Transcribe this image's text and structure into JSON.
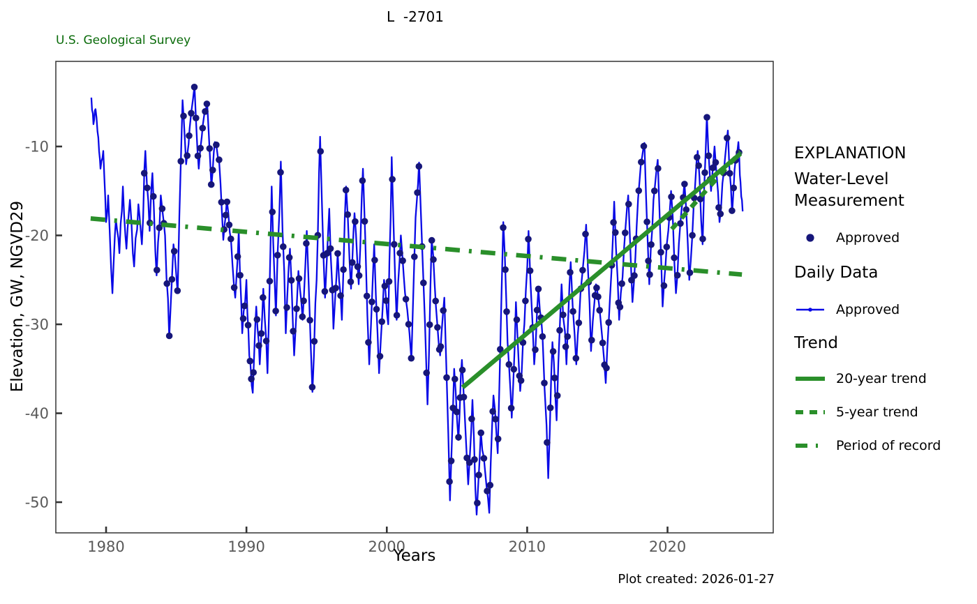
{
  "header": {
    "title": "L  -2701",
    "agency": "U.S. Geological Survey",
    "plot_created": "Plot created: 2026-01-27"
  },
  "axes": {
    "x_label": "Years",
    "y_label": "Elevation, GW, NGVD29"
  },
  "legend": {
    "title": "EXPLANATION",
    "sections": [
      {
        "header": "Water-Level Measurement",
        "items": [
          {
            "label": "Approved",
            "swatch": "measurement-dot"
          }
        ]
      },
      {
        "header": "Daily Data",
        "items": [
          {
            "label": "Approved",
            "swatch": "daily-line"
          }
        ]
      },
      {
        "header": "Trend",
        "items": [
          {
            "label": "20-year trend",
            "swatch": "solid-line"
          },
          {
            "label": "5-year trend",
            "swatch": "short-dash-line"
          },
          {
            "label": "Period of record",
            "swatch": "long-dash-line"
          }
        ]
      }
    ]
  },
  "colors": {
    "daily_line": "#0909e6",
    "measurement_dot": "#16167a",
    "trend_green": "#2a8f2a",
    "header_green": "#0a6b0a",
    "axis": "#333333",
    "tick_label": "#595959"
  },
  "chart_data": {
    "type": "line",
    "title": "L  -2701",
    "xlabel": "Years",
    "ylabel": "Elevation, GW, NGVD29",
    "grid": false,
    "x_range": [
      1976.42,
      2027.53
    ],
    "y_range": [
      -53.45,
      -0.43
    ],
    "x_ticks": [
      1980,
      1990,
      2000,
      2010,
      2020
    ],
    "y_ticks": [
      -10,
      -20,
      -30,
      -40,
      -50
    ],
    "series": [
      {
        "name": "Daily Data — Approved",
        "type": "line",
        "color_key": "daily_line",
        "anchors": [
          [
            1978.95,
            -4.5
          ],
          [
            1979.1,
            -7.5
          ],
          [
            1979.25,
            -5.8
          ],
          [
            1979.45,
            -9.0
          ],
          [
            1979.6,
            -12.5
          ],
          [
            1979.8,
            -10.5
          ],
          [
            1980.0,
            -18.5
          ],
          [
            1980.15,
            -15.5
          ],
          [
            1980.45,
            -26.5
          ],
          [
            1980.7,
            -18.2
          ],
          [
            1980.95,
            -22.0
          ],
          [
            1981.2,
            -14.5
          ],
          [
            1981.45,
            -21.5
          ],
          [
            1981.7,
            -16.0
          ],
          [
            1982.0,
            -23.5
          ],
          [
            1982.3,
            -16.5
          ],
          [
            1982.55,
            -21.0
          ],
          [
            1982.8,
            -10.5
          ],
          [
            1983.1,
            -19.5
          ],
          [
            1983.3,
            -13.0
          ],
          [
            1983.6,
            -24.5
          ],
          [
            1983.9,
            -15.5
          ],
          [
            1984.2,
            -20.0
          ],
          [
            1984.5,
            -31.5
          ],
          [
            1984.8,
            -21.0
          ],
          [
            1985.1,
            -26.5
          ],
          [
            1985.45,
            -4.8
          ],
          [
            1985.7,
            -12.0
          ],
          [
            1985.95,
            -8.0
          ],
          [
            1986.3,
            -3.2
          ],
          [
            1986.6,
            -12.5
          ],
          [
            1986.9,
            -7.5
          ],
          [
            1987.2,
            -5.0
          ],
          [
            1987.5,
            -14.5
          ],
          [
            1987.75,
            -9.5
          ],
          [
            1988.05,
            -11.5
          ],
          [
            1988.35,
            -20.5
          ],
          [
            1988.6,
            -16.0
          ],
          [
            1988.9,
            -20.5
          ],
          [
            1989.2,
            -27.0
          ],
          [
            1989.45,
            -19.5
          ],
          [
            1989.7,
            -31.0
          ],
          [
            1990.0,
            -25.0
          ],
          [
            1990.2,
            -33.5
          ],
          [
            1990.45,
            -37.7
          ],
          [
            1990.7,
            -28.0
          ],
          [
            1990.95,
            -34.5
          ],
          [
            1991.2,
            -26.0
          ],
          [
            1991.5,
            -35.5
          ],
          [
            1991.8,
            -14.5
          ],
          [
            1992.1,
            -29.0
          ],
          [
            1992.45,
            -11.7
          ],
          [
            1992.8,
            -31.0
          ],
          [
            1993.1,
            -21.5
          ],
          [
            1993.4,
            -33.5
          ],
          [
            1993.7,
            -24.0
          ],
          [
            1994.0,
            -29.5
          ],
          [
            1994.3,
            -19.5
          ],
          [
            1994.7,
            -37.6
          ],
          [
            1995.0,
            -25.0
          ],
          [
            1995.25,
            -8.9
          ],
          [
            1995.6,
            -27.0
          ],
          [
            1995.9,
            -17.0
          ],
          [
            1996.2,
            -30.5
          ],
          [
            1996.5,
            -22.0
          ],
          [
            1996.8,
            -29.5
          ],
          [
            1997.1,
            -14.5
          ],
          [
            1997.45,
            -26.0
          ],
          [
            1997.7,
            -17.5
          ],
          [
            1998.0,
            -25.5
          ],
          [
            1998.3,
            -12.5
          ],
          [
            1998.75,
            -34.5
          ],
          [
            1999.1,
            -21.0
          ],
          [
            1999.45,
            -35.5
          ],
          [
            1999.8,
            -25.0
          ],
          [
            2000.1,
            -30.0
          ],
          [
            2000.35,
            -11.2
          ],
          [
            2000.7,
            -29.5
          ],
          [
            2001.0,
            -20.0
          ],
          [
            2001.3,
            -26.5
          ],
          [
            2001.75,
            -34.0
          ],
          [
            2002.05,
            -18.0
          ],
          [
            2002.3,
            -11.8
          ],
          [
            2002.9,
            -39.0
          ],
          [
            2003.2,
            -20.5
          ],
          [
            2003.5,
            -28.0
          ],
          [
            2003.8,
            -33.5
          ],
          [
            2004.1,
            -27.0
          ],
          [
            2004.5,
            -49.8
          ],
          [
            2004.8,
            -35.0
          ],
          [
            2005.1,
            -43.0
          ],
          [
            2005.35,
            -34.0
          ],
          [
            2005.8,
            -48.0
          ],
          [
            2006.1,
            -38.5
          ],
          [
            2006.4,
            -51.4
          ],
          [
            2006.7,
            -42.0
          ],
          [
            2007.0,
            -46.5
          ],
          [
            2007.3,
            -51.2
          ],
          [
            2007.6,
            -38.0
          ],
          [
            2007.9,
            -44.5
          ],
          [
            2008.3,
            -18.5
          ],
          [
            2008.6,
            -32.0
          ],
          [
            2008.9,
            -40.5
          ],
          [
            2009.2,
            -27.5
          ],
          [
            2009.5,
            -37.5
          ],
          [
            2009.8,
            -30.0
          ],
          [
            2010.1,
            -19.5
          ],
          [
            2010.5,
            -34.5
          ],
          [
            2010.8,
            -26.0
          ],
          [
            2011.1,
            -31.5
          ],
          [
            2011.5,
            -47.3
          ],
          [
            2011.8,
            -32.0
          ],
          [
            2012.1,
            -40.8
          ],
          [
            2012.45,
            -25.5
          ],
          [
            2012.8,
            -34.5
          ],
          [
            2013.1,
            -23.0
          ],
          [
            2013.5,
            -34.5
          ],
          [
            2013.8,
            -26.5
          ],
          [
            2014.2,
            -18.8
          ],
          [
            2014.55,
            -33.0
          ],
          [
            2014.9,
            -25.5
          ],
          [
            2015.2,
            -29.0
          ],
          [
            2015.6,
            -36.6
          ],
          [
            2015.9,
            -27.0
          ],
          [
            2016.2,
            -16.2
          ],
          [
            2016.55,
            -29.5
          ],
          [
            2016.9,
            -21.5
          ],
          [
            2017.2,
            -15.5
          ],
          [
            2017.5,
            -27.5
          ],
          [
            2017.8,
            -19.0
          ],
          [
            2018.1,
            -12.0
          ],
          [
            2018.35,
            -9.6
          ],
          [
            2018.7,
            -25.5
          ],
          [
            2019.0,
            -16.0
          ],
          [
            2019.3,
            -11.5
          ],
          [
            2019.65,
            -28.0
          ],
          [
            2019.95,
            -21.0
          ],
          [
            2020.25,
            -15.0
          ],
          [
            2020.6,
            -26.5
          ],
          [
            2020.9,
            -19.0
          ],
          [
            2021.2,
            -14.0
          ],
          [
            2021.55,
            -25.0
          ],
          [
            2021.85,
            -17.0
          ],
          [
            2022.15,
            -10.5
          ],
          [
            2022.5,
            -21.0
          ],
          [
            2022.8,
            -6.5
          ],
          [
            2023.1,
            -15.0
          ],
          [
            2023.35,
            -10.0
          ],
          [
            2023.7,
            -18.5
          ],
          [
            2024.0,
            -13.0
          ],
          [
            2024.3,
            -8.2
          ],
          [
            2024.6,
            -17.5
          ],
          [
            2024.85,
            -11.5
          ],
          [
            2025.05,
            -9.5
          ],
          [
            2025.2,
            -14.0
          ],
          [
            2025.35,
            -17.3
          ]
        ]
      },
      {
        "name": "Water-Level Measurement — Approved",
        "type": "scatter",
        "color_key": "measurement_dot",
        "sampling": {
          "start": 1982.72,
          "end": 2025.3,
          "note": "points lie on the daily line, irregular ~0.1-0.26 yr spacing"
        }
      }
    ],
    "trends": [
      {
        "name": "20-year trend",
        "style": "solid",
        "color_key": "trend_green",
        "points": [
          [
            2005.4,
            -37.1
          ],
          [
            2025.2,
            -10.8
          ]
        ]
      },
      {
        "name": "5-year trend",
        "style": "dashed",
        "color_key": "trend_green",
        "points": [
          [
            2020.3,
            -19.3
          ],
          [
            2025.2,
            -10.6
          ]
        ]
      },
      {
        "name": "Period of record",
        "style": "long-dash",
        "color_key": "trend_green",
        "points": [
          [
            1978.9,
            -18.1
          ],
          [
            2025.3,
            -24.4
          ]
        ]
      }
    ]
  }
}
